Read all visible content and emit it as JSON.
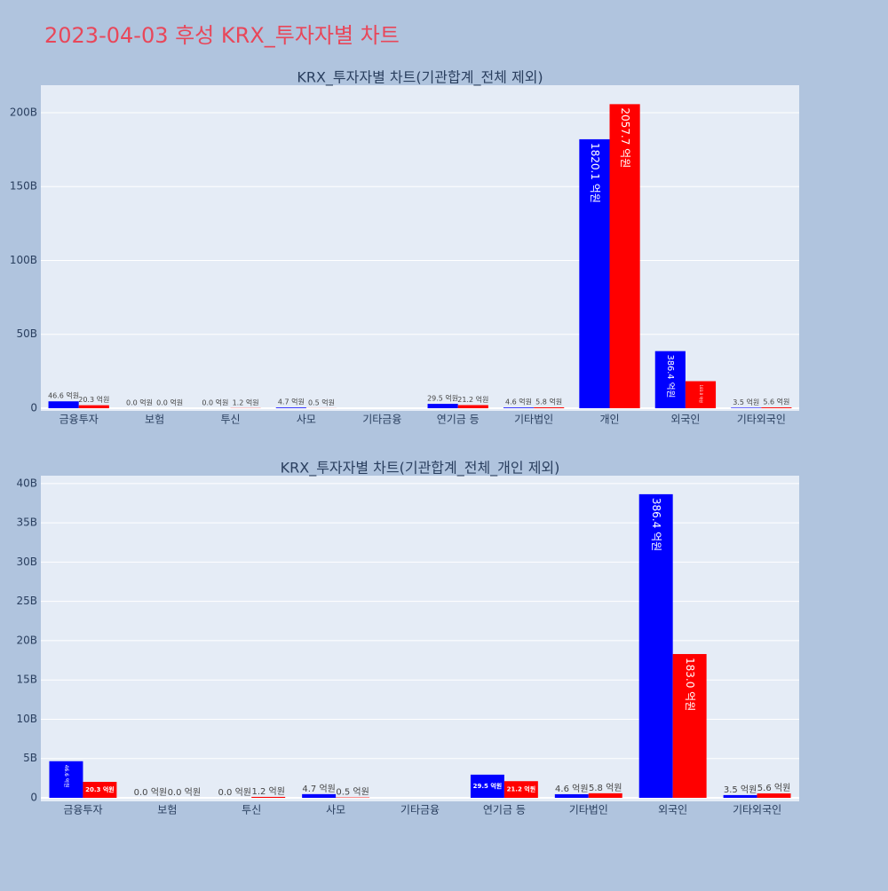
{
  "title": "2023-04-03 후성 KRX_투자자별 차트",
  "chart_data": [
    {
      "type": "bar",
      "title": "KRX_투자자별 차트(기관합계_전체 제외)",
      "categories": [
        "금융투자",
        "보험",
        "투신",
        "사모",
        "기타금융",
        "연기금 등",
        "기타법인",
        "개인",
        "외국인",
        "기타외국인"
      ],
      "series": [
        {
          "color": "#0000ff",
          "values": [
            4.66,
            0,
            0,
            0.47,
            null,
            2.95,
            0.46,
            182.01,
            38.64,
            0.35
          ],
          "value_labels": [
            "46.6 억원",
            "0.0 억원",
            "0.0 억원",
            "4.7 억원",
            null,
            "29.5 억원",
            "4.6 억원",
            "1820.1 억원",
            "386.4 억원",
            "3.5 억원"
          ]
        },
        {
          "color": "#ff0000",
          "values": [
            2.03,
            0,
            0.12,
            0.05,
            null,
            2.12,
            0.58,
            205.77,
            18.3,
            0.56
          ],
          "value_labels": [
            "20.3 억원",
            "0.0 억원",
            "1.2 억원",
            "0.5 억원",
            null,
            "21.2 억원",
            "5.8 억원",
            "2057.7 억원",
            "183.0 억원",
            "5.6 억원"
          ]
        }
      ],
      "ylim": [
        -1.8,
        218.6
      ],
      "yticks": [
        0,
        {
          "value": 50,
          "label": "50B"
        },
        {
          "value": 100,
          "label": "100B"
        },
        {
          "value": 150,
          "label": "150B"
        },
        {
          "value": 200,
          "label": "200B"
        }
      ],
      "grid": true
    },
    {
      "type": "bar",
      "title": "KRX_투자자별 차트(기관합계_전체_개인 제외)",
      "categories": [
        "금융투자",
        "보험",
        "투신",
        "사모",
        "기타금융",
        "연기금 등",
        "기타법인",
        "외국인",
        "기타외국인"
      ],
      "series": [
        {
          "color": "#0000ff",
          "values": [
            4.66,
            0,
            0,
            0.47,
            null,
            2.95,
            0.46,
            38.64,
            0.35
          ],
          "value_labels": [
            "46.6 억원",
            "0.0 억원",
            "0.0 억원",
            "4.7 억원",
            null,
            "29.5 억원",
            "4.6 억원",
            "386.4 억원",
            "3.5 억원"
          ]
        },
        {
          "color": "#ff0000",
          "values": [
            2.03,
            0,
            0.12,
            0.05,
            null,
            2.12,
            0.58,
            18.3,
            0.56
          ],
          "value_labels": [
            "20.3 억원",
            "0.0 억원",
            "1.2 억원",
            "0.5 억원",
            null,
            "21.2 억원",
            "5.8 억원",
            "183.0 억원",
            "5.6 억원"
          ]
        }
      ],
      "ylim": [
        -0.45,
        41.0
      ],
      "yticks": [
        0,
        {
          "value": 5,
          "label": "5B"
        },
        {
          "value": 10,
          "label": "10B"
        },
        {
          "value": 15,
          "label": "15B"
        },
        {
          "value": 20,
          "label": "20B"
        },
        {
          "value": 25,
          "label": "25B"
        },
        {
          "value": 30,
          "label": "30B"
        },
        {
          "value": 35,
          "label": "35B"
        },
        {
          "value": 40,
          "label": "40B"
        }
      ],
      "grid": true
    }
  ]
}
